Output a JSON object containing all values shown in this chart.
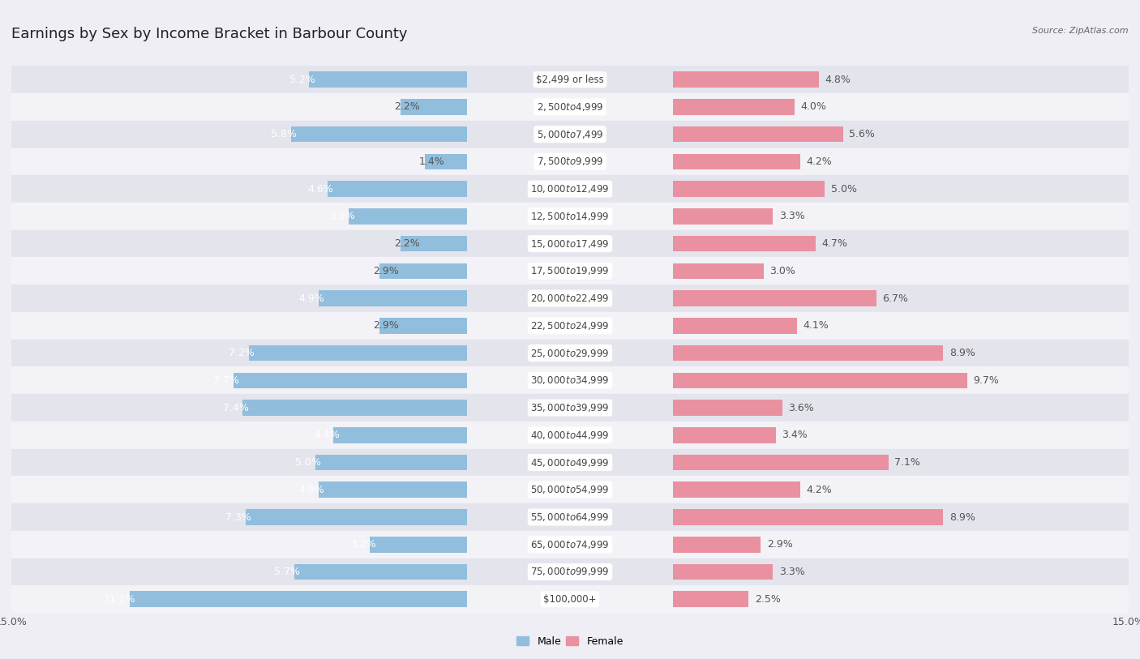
{
  "title": "Earnings by Sex by Income Bracket in Barbour County",
  "source": "Source: ZipAtlas.com",
  "categories": [
    "$2,499 or less",
    "$2,500 to $4,999",
    "$5,000 to $7,499",
    "$7,500 to $9,999",
    "$10,000 to $12,499",
    "$12,500 to $14,999",
    "$15,000 to $17,499",
    "$17,500 to $19,999",
    "$20,000 to $22,499",
    "$22,500 to $24,999",
    "$25,000 to $29,999",
    "$30,000 to $34,999",
    "$35,000 to $39,999",
    "$40,000 to $44,999",
    "$45,000 to $49,999",
    "$50,000 to $54,999",
    "$55,000 to $64,999",
    "$65,000 to $74,999",
    "$75,000 to $99,999",
    "$100,000+"
  ],
  "male_values": [
    5.2,
    2.2,
    5.8,
    1.4,
    4.6,
    3.9,
    2.2,
    2.9,
    4.9,
    2.9,
    7.2,
    7.7,
    7.4,
    4.4,
    5.0,
    4.9,
    7.3,
    3.2,
    5.7,
    11.1
  ],
  "female_values": [
    4.8,
    4.0,
    5.6,
    4.2,
    5.0,
    3.3,
    4.7,
    3.0,
    6.7,
    4.1,
    8.9,
    9.7,
    3.6,
    3.4,
    7.1,
    4.2,
    8.9,
    2.9,
    3.3,
    2.5
  ],
  "male_color": "#92bedd",
  "female_color": "#e991a0",
  "male_label_inside_color": "#ffffff",
  "male_label_outside_color": "#555555",
  "female_label_color": "#555555",
  "category_bg_color": "#ffffff",
  "category_text_color": "#444444",
  "background_color": "#eeeef4",
  "row_even_color": "#e4e4ed",
  "row_odd_color": "#f2f2f7",
  "xlim": 15.0,
  "bar_height": 0.58,
  "title_fontsize": 13,
  "label_fontsize": 9,
  "category_fontsize": 8.5,
  "legend_fontsize": 9,
  "source_fontsize": 8
}
